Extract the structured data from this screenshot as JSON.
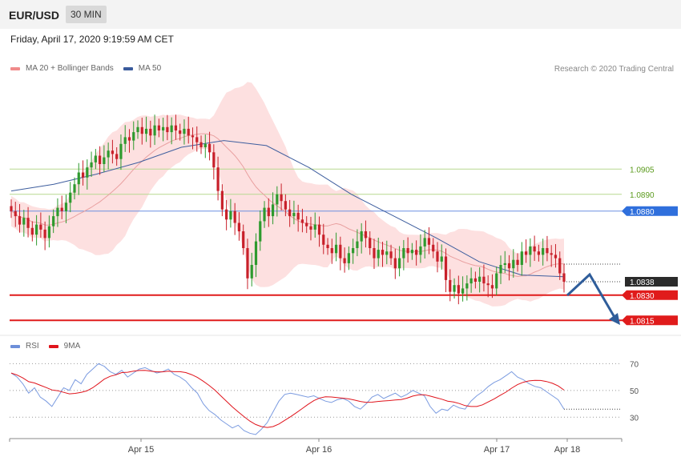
{
  "header": {
    "pair": "EUR/USD",
    "timeframe": "30 MIN"
  },
  "datetime": "Friday, April 17, 2020 9:19:59 AM CET",
  "legend_main": [
    {
      "label": "MA 20 + Bollinger Bands",
      "color": "#f08a8a"
    },
    {
      "label": "MA 50",
      "color": "#3a5b9c"
    }
  ],
  "legend_rsi": [
    {
      "label": "RSI",
      "color": "#6d8fd9"
    },
    {
      "label": "9MA",
      "color": "#e0141c"
    }
  ],
  "copyright": "Research © 2020 Trading Central",
  "colors": {
    "up": "#2e9a2e",
    "down": "#c8202a",
    "bb_fill": "#fde0e0",
    "ma20": "#e9a0a0",
    "ma50": "#3e5e9e",
    "forecast": "#2f5d9a"
  },
  "chart_data": {
    "type": "candlestick",
    "price_ylim": [
      1.0808,
      1.0958
    ],
    "xlabel": "",
    "ylabel": "",
    "x_ticks": [
      "Apr 15",
      "Apr 16",
      "Apr 17",
      "Apr 18"
    ],
    "levels": [
      {
        "label": "1.0905",
        "value": 1.0905,
        "kind": "resistance-minor"
      },
      {
        "label": "1.0890",
        "value": 1.089,
        "kind": "resistance-minor"
      },
      {
        "label": "1.0880",
        "value": 1.088,
        "kind": "pivot"
      },
      {
        "label": "1.0838",
        "value": 1.0838,
        "kind": "last-price"
      },
      {
        "label": "1.0830",
        "value": 1.083,
        "kind": "support"
      },
      {
        "label": "1.0815",
        "value": 1.0815,
        "kind": "support"
      }
    ],
    "candles_close": [
      1.088,
      1.0877,
      1.0872,
      1.0876,
      1.087,
      1.0866,
      1.0872,
      1.0869,
      1.0864,
      1.0871,
      1.0877,
      1.0882,
      1.088,
      1.0885,
      1.0891,
      1.0896,
      1.0903,
      1.09,
      1.0906,
      1.0909,
      1.0913,
      1.0908,
      1.0912,
      1.0916,
      1.0914,
      1.0911,
      1.092,
      1.0924,
      1.0922,
      1.0927,
      1.093,
      1.0926,
      1.0929,
      1.0925,
      1.0931,
      1.0928,
      1.093,
      1.0927,
      1.0931,
      1.0928,
      1.0926,
      1.0929,
      1.0925,
      1.0924,
      1.0921,
      1.0918,
      1.092,
      1.0915,
      1.0906,
      1.0892,
      1.0881,
      1.0875,
      1.088,
      1.0873,
      1.0868,
      1.0858,
      1.084,
      1.0848,
      1.0862,
      1.0874,
      1.0882,
      1.0877,
      1.0884,
      1.089,
      1.0886,
      1.0881,
      1.0877,
      1.0879,
      1.0875,
      1.0873,
      1.0871,
      1.0869,
      1.0872,
      1.0866,
      1.086,
      1.0858,
      1.0855,
      1.086,
      1.0852,
      1.0849,
      1.0855,
      1.0858,
      1.0862,
      1.0868,
      1.0864,
      1.0858,
      1.0852,
      1.0857,
      1.0854,
      1.0856,
      1.0852,
      1.0846,
      1.0852,
      1.0858,
      1.0855,
      1.0857,
      1.0854,
      1.0859,
      1.0864,
      1.086,
      1.0856,
      1.085,
      1.0853,
      1.0839,
      1.0832,
      1.0836,
      1.0831,
      1.0834,
      1.0837,
      1.084,
      1.0838,
      1.0841,
      1.0837,
      1.0836,
      1.0834,
      1.0843,
      1.0848,
      1.0849,
      1.0846,
      1.0851,
      1.0848,
      1.0856,
      1.0854,
      1.0859,
      1.0856,
      1.0854,
      1.0858,
      1.0855,
      1.0854,
      1.0852,
      1.0843,
      1.0838
    ],
    "ma50_points": [
      1.0892,
      1.0896,
      1.0902,
      1.0909,
      1.0918,
      1.0922,
      1.0919,
      1.0906,
      1.089,
      1.0877,
      1.0864,
      1.085,
      1.0842,
      1.0841
    ],
    "rsi_ylim": [
      20,
      75
    ],
    "rsi_ticks": [
      70,
      50,
      30
    ],
    "rsi_values": [
      63,
      60,
      55,
      48,
      52,
      45,
      42,
      38,
      45,
      52,
      50,
      58,
      55,
      62,
      66,
      70,
      68,
      64,
      62,
      65,
      60,
      63,
      66,
      67,
      65,
      63,
      64,
      66,
      62,
      60,
      57,
      52,
      48,
      40,
      35,
      32,
      28,
      25,
      22,
      24,
      20,
      18,
      17,
      21,
      26,
      34,
      42,
      47,
      48,
      47,
      46,
      45,
      46,
      44,
      42,
      41,
      43,
      44,
      42,
      38,
      36,
      40,
      45,
      47,
      44,
      46,
      48,
      45,
      47,
      50,
      48,
      46,
      38,
      33,
      36,
      35,
      39,
      37,
      36,
      42,
      46,
      49,
      53,
      56,
      58,
      61,
      64,
      60,
      58,
      55,
      53,
      52,
      49,
      46,
      43,
      36
    ]
  }
}
